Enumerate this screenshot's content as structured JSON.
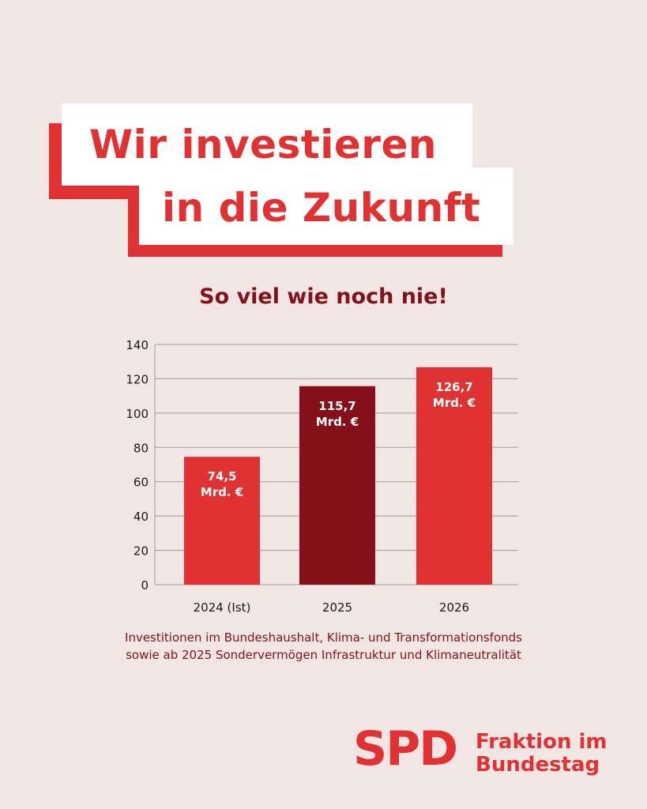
{
  "headline": {
    "line1": "Wir investieren",
    "line2": "in die Zukunft"
  },
  "subtitle": "So viel wie noch nie!",
  "colors": {
    "background": "#f2e6e4",
    "red": "#e03233",
    "dark_red": "#85101a",
    "grid": "#9a9a9a"
  },
  "chart_data": {
    "type": "bar",
    "categories": [
      "2024 (Ist)",
      "2025",
      "2026"
    ],
    "values": [
      74.5,
      115.7,
      126.7
    ],
    "value_labels": [
      [
        "74,5",
        "Mrd. €"
      ],
      [
        "115,7",
        "Mrd. €"
      ],
      [
        "126,7",
        "Mrd. €"
      ]
    ],
    "bar_colors": [
      "#e03233",
      "#85101a",
      "#e03233"
    ],
    "ylim": [
      0,
      140
    ],
    "yticks": [
      0,
      20,
      40,
      60,
      80,
      100,
      120,
      140
    ],
    "grid": true,
    "xlabel": "",
    "ylabel": ""
  },
  "caption": {
    "line1": "Investitionen im Bundeshaushalt, Klima- und Transformationsfonds",
    "line2": "sowie ab 2025 Sondervermögen Infrastruktur und Klimaneutralität"
  },
  "logo": {
    "text": "SPD",
    "org_line1": "Fraktion im",
    "org_line2": "Bundestag"
  }
}
